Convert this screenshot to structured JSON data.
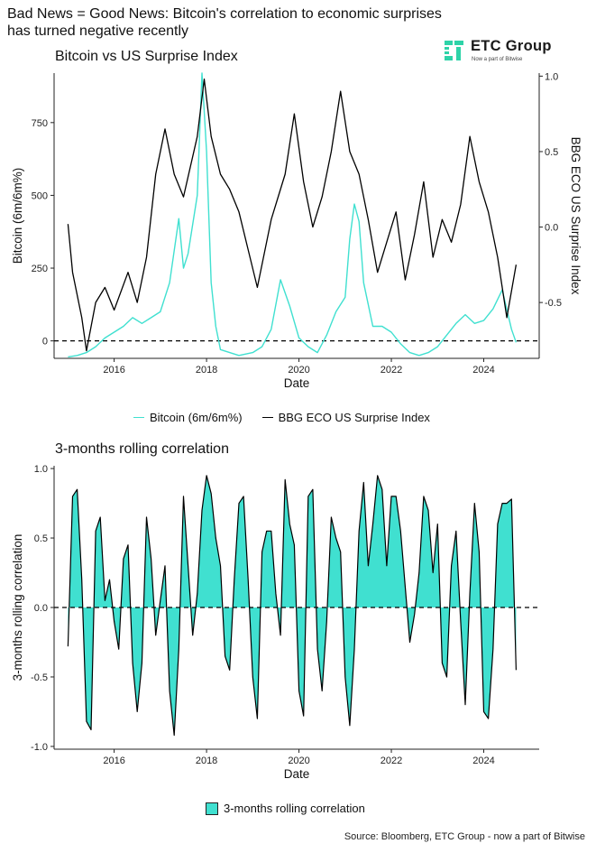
{
  "title": "Bad News = Good News: Bitcoin's correlation to economic surprises\n has turned negative recently",
  "logo": {
    "name": "ETC Group",
    "tagline": "Now a part of Bitwise",
    "icon": "etc-group-logo-icon",
    "color": "#2ed3a8"
  },
  "source": "Source: Bloomberg, ETC Group - now a part of Bitwise",
  "colors": {
    "bitcoin": "#40e0d0",
    "surprise": "#000000",
    "correlation_fill": "#40e0d0"
  },
  "chart_data": [
    {
      "type": "line",
      "title": "Bitcoin vs US Surprise Index",
      "xlabel": "Date",
      "ylabel": "Bitcoin (6m/6m%)",
      "y2label": "BBG ECO US Surprise Index",
      "xlim": [
        2014.7,
        2025.2
      ],
      "ylim": [
        -60,
        920
      ],
      "y2lim": [
        -0.87,
        1.02
      ],
      "xticks": [
        "2016",
        "2018",
        "2020",
        "2022",
        "2024"
      ],
      "yticks": [
        "0",
        "250",
        "500",
        "750"
      ],
      "y2ticks": [
        "-0.5",
        "0.0",
        "0.5",
        "1.0"
      ],
      "grid": false,
      "legend_position": "bottom",
      "reference_line": 0,
      "series": [
        {
          "name": "Bitcoin (6m/6m%)",
          "axis": "left",
          "x": [
            2015.0,
            2015.2,
            2015.4,
            2015.6,
            2015.8,
            2016.0,
            2016.2,
            2016.4,
            2016.6,
            2016.8,
            2017.0,
            2017.2,
            2017.4,
            2017.5,
            2017.6,
            2017.8,
            2017.9,
            2018.0,
            2018.1,
            2018.2,
            2018.3,
            2018.5,
            2018.7,
            2019.0,
            2019.2,
            2019.4,
            2019.6,
            2019.8,
            2020.0,
            2020.2,
            2020.4,
            2020.6,
            2020.8,
            2021.0,
            2021.1,
            2021.2,
            2021.3,
            2021.4,
            2021.6,
            2021.8,
            2022.0,
            2022.2,
            2022.4,
            2022.6,
            2022.8,
            2023.0,
            2023.2,
            2023.4,
            2023.6,
            2023.8,
            2024.0,
            2024.2,
            2024.4,
            2024.6,
            2024.7
          ],
          "y": [
            -55,
            -50,
            -40,
            -20,
            10,
            30,
            50,
            80,
            60,
            80,
            100,
            200,
            420,
            250,
            300,
            500,
            920,
            650,
            200,
            50,
            -30,
            -40,
            -50,
            -40,
            -20,
            40,
            210,
            120,
            10,
            -20,
            -40,
            20,
            100,
            150,
            350,
            470,
            410,
            200,
            50,
            50,
            30,
            -10,
            -40,
            -50,
            -40,
            -20,
            20,
            60,
            90,
            60,
            70,
            110,
            175,
            40,
            -5
          ]
        },
        {
          "name": "BBG ECO US Surprise Index",
          "axis": "right",
          "x": [
            2015.0,
            2015.1,
            2015.3,
            2015.4,
            2015.6,
            2015.8,
            2016.0,
            2016.3,
            2016.5,
            2016.7,
            2016.9,
            2017.1,
            2017.3,
            2017.5,
            2017.8,
            2017.95,
            2018.1,
            2018.3,
            2018.5,
            2018.7,
            2018.9,
            2019.1,
            2019.4,
            2019.7,
            2019.9,
            2020.1,
            2020.3,
            2020.5,
            2020.7,
            2020.9,
            2021.1,
            2021.3,
            2021.5,
            2021.7,
            2021.9,
            2022.1,
            2022.3,
            2022.5,
            2022.7,
            2022.9,
            2023.1,
            2023.3,
            2023.5,
            2023.7,
            2023.9,
            2024.1,
            2024.3,
            2024.5,
            2024.7
          ],
          "y": [
            0.02,
            -0.3,
            -0.6,
            -0.82,
            -0.5,
            -0.4,
            -0.55,
            -0.3,
            -0.5,
            -0.2,
            0.35,
            0.65,
            0.35,
            0.2,
            0.6,
            0.98,
            0.6,
            0.35,
            0.25,
            0.1,
            -0.15,
            -0.4,
            0.05,
            0.35,
            0.75,
            0.3,
            0.0,
            0.2,
            0.5,
            0.9,
            0.5,
            0.35,
            0.05,
            -0.3,
            -0.1,
            0.1,
            -0.35,
            -0.05,
            0.3,
            -0.2,
            0.05,
            -0.1,
            0.15,
            0.6,
            0.3,
            0.1,
            -0.2,
            -0.6,
            -0.25
          ]
        }
      ]
    },
    {
      "type": "area",
      "title": "3-months rolling correlation",
      "xlabel": "Date",
      "ylabel": "3-months rolling correlation",
      "xlim": [
        2014.7,
        2025.2
      ],
      "ylim": [
        -1.02,
        1.02
      ],
      "xticks": [
        "2016",
        "2018",
        "2020",
        "2022",
        "2024"
      ],
      "yticks": [
        "-1.0",
        "-0.5",
        "0.0",
        "0.5",
        "1.0"
      ],
      "grid": false,
      "legend_position": "bottom",
      "reference_line": 0,
      "series": [
        {
          "name": "3-months rolling correlation",
          "x": [
            2015.0,
            2015.1,
            2015.2,
            2015.3,
            2015.4,
            2015.5,
            2015.6,
            2015.7,
            2015.8,
            2015.9,
            2016.0,
            2016.1,
            2016.2,
            2016.3,
            2016.4,
            2016.5,
            2016.6,
            2016.7,
            2016.8,
            2016.9,
            2017.0,
            2017.1,
            2017.2,
            2017.3,
            2017.4,
            2017.5,
            2017.6,
            2017.7,
            2017.8,
            2017.9,
            2018.0,
            2018.1,
            2018.2,
            2018.3,
            2018.4,
            2018.5,
            2018.6,
            2018.7,
            2018.8,
            2018.9,
            2019.0,
            2019.1,
            2019.2,
            2019.3,
            2019.4,
            2019.5,
            2019.6,
            2019.7,
            2019.8,
            2019.9,
            2020.0,
            2020.1,
            2020.2,
            2020.3,
            2020.4,
            2020.5,
            2020.6,
            2020.7,
            2020.8,
            2020.9,
            2021.0,
            2021.1,
            2021.2,
            2021.3,
            2021.4,
            2021.5,
            2021.6,
            2021.7,
            2021.8,
            2021.9,
            2022.0,
            2022.1,
            2022.2,
            2022.3,
            2022.4,
            2022.5,
            2022.6,
            2022.7,
            2022.8,
            2022.9,
            2023.0,
            2023.1,
            2023.2,
            2023.3,
            2023.4,
            2023.5,
            2023.6,
            2023.7,
            2023.8,
            2023.9,
            2024.0,
            2024.1,
            2024.2,
            2024.3,
            2024.4,
            2024.5,
            2024.6,
            2024.7
          ],
          "y": [
            -0.28,
            0.8,
            0.85,
            0.2,
            -0.82,
            -0.88,
            0.55,
            0.65,
            0.05,
            0.2,
            -0.1,
            -0.3,
            0.35,
            0.45,
            -0.4,
            -0.75,
            -0.4,
            0.65,
            0.35,
            -0.2,
            0.05,
            0.3,
            -0.6,
            -0.92,
            -0.3,
            0.8,
            0.3,
            -0.2,
            0.1,
            0.7,
            0.95,
            0.82,
            0.5,
            0.3,
            -0.35,
            -0.45,
            0.2,
            0.75,
            0.8,
            0.2,
            -0.5,
            -0.8,
            0.4,
            0.55,
            0.55,
            0.1,
            -0.2,
            0.92,
            0.6,
            0.45,
            -0.6,
            -0.78,
            0.8,
            0.85,
            -0.3,
            -0.6,
            -0.1,
            0.65,
            0.5,
            0.4,
            -0.5,
            -0.85,
            -0.3,
            0.55,
            0.9,
            0.3,
            0.6,
            0.95,
            0.85,
            0.3,
            0.8,
            0.8,
            0.55,
            0.15,
            -0.25,
            -0.05,
            0.25,
            0.8,
            0.7,
            0.25,
            0.6,
            -0.4,
            -0.5,
            0.3,
            0.55,
            -0.1,
            -0.7,
            0.1,
            0.75,
            0.4,
            -0.75,
            -0.8,
            -0.3,
            0.6,
            0.75,
            0.75,
            0.78,
            -0.45
          ]
        }
      ]
    }
  ]
}
